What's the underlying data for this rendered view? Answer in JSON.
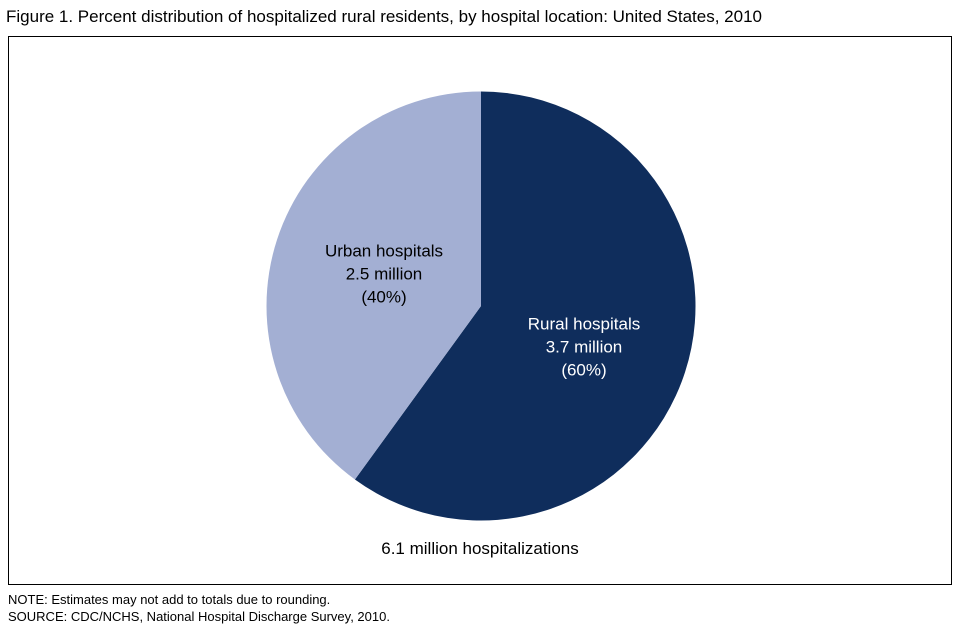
{
  "title": "Figure 1. Percent distribution of hospitalized rural residents, by hospital location: United States, 2010",
  "chart_data": {
    "type": "pie",
    "title": "Percent distribution of hospitalized rural residents, by hospital location: United States, 2010",
    "start_angle_deg": 0,
    "slices": [
      {
        "label": "Rural hospitals",
        "value_label": "3.7 million",
        "percent_label": "(60%)",
        "percent": 60,
        "value_millions": 3.7,
        "color": "#0f2d5c",
        "text_color": "#ffffff"
      },
      {
        "label": "Urban hospitals",
        "value_label": "2.5 million",
        "percent_label": "(40%)",
        "percent": 40,
        "value_millions": 2.5,
        "color": "#a3afd3",
        "text_color": "#000000"
      }
    ],
    "total_label": "6.1 million hospitalizations",
    "total_millions": 6.1,
    "legend_position": "inside-slices"
  },
  "footer": {
    "note": "NOTE: Estimates may not add to totals due to rounding.",
    "source": "SOURCE: CDC/NCHS, National Hospital Discharge Survey, 2010."
  }
}
